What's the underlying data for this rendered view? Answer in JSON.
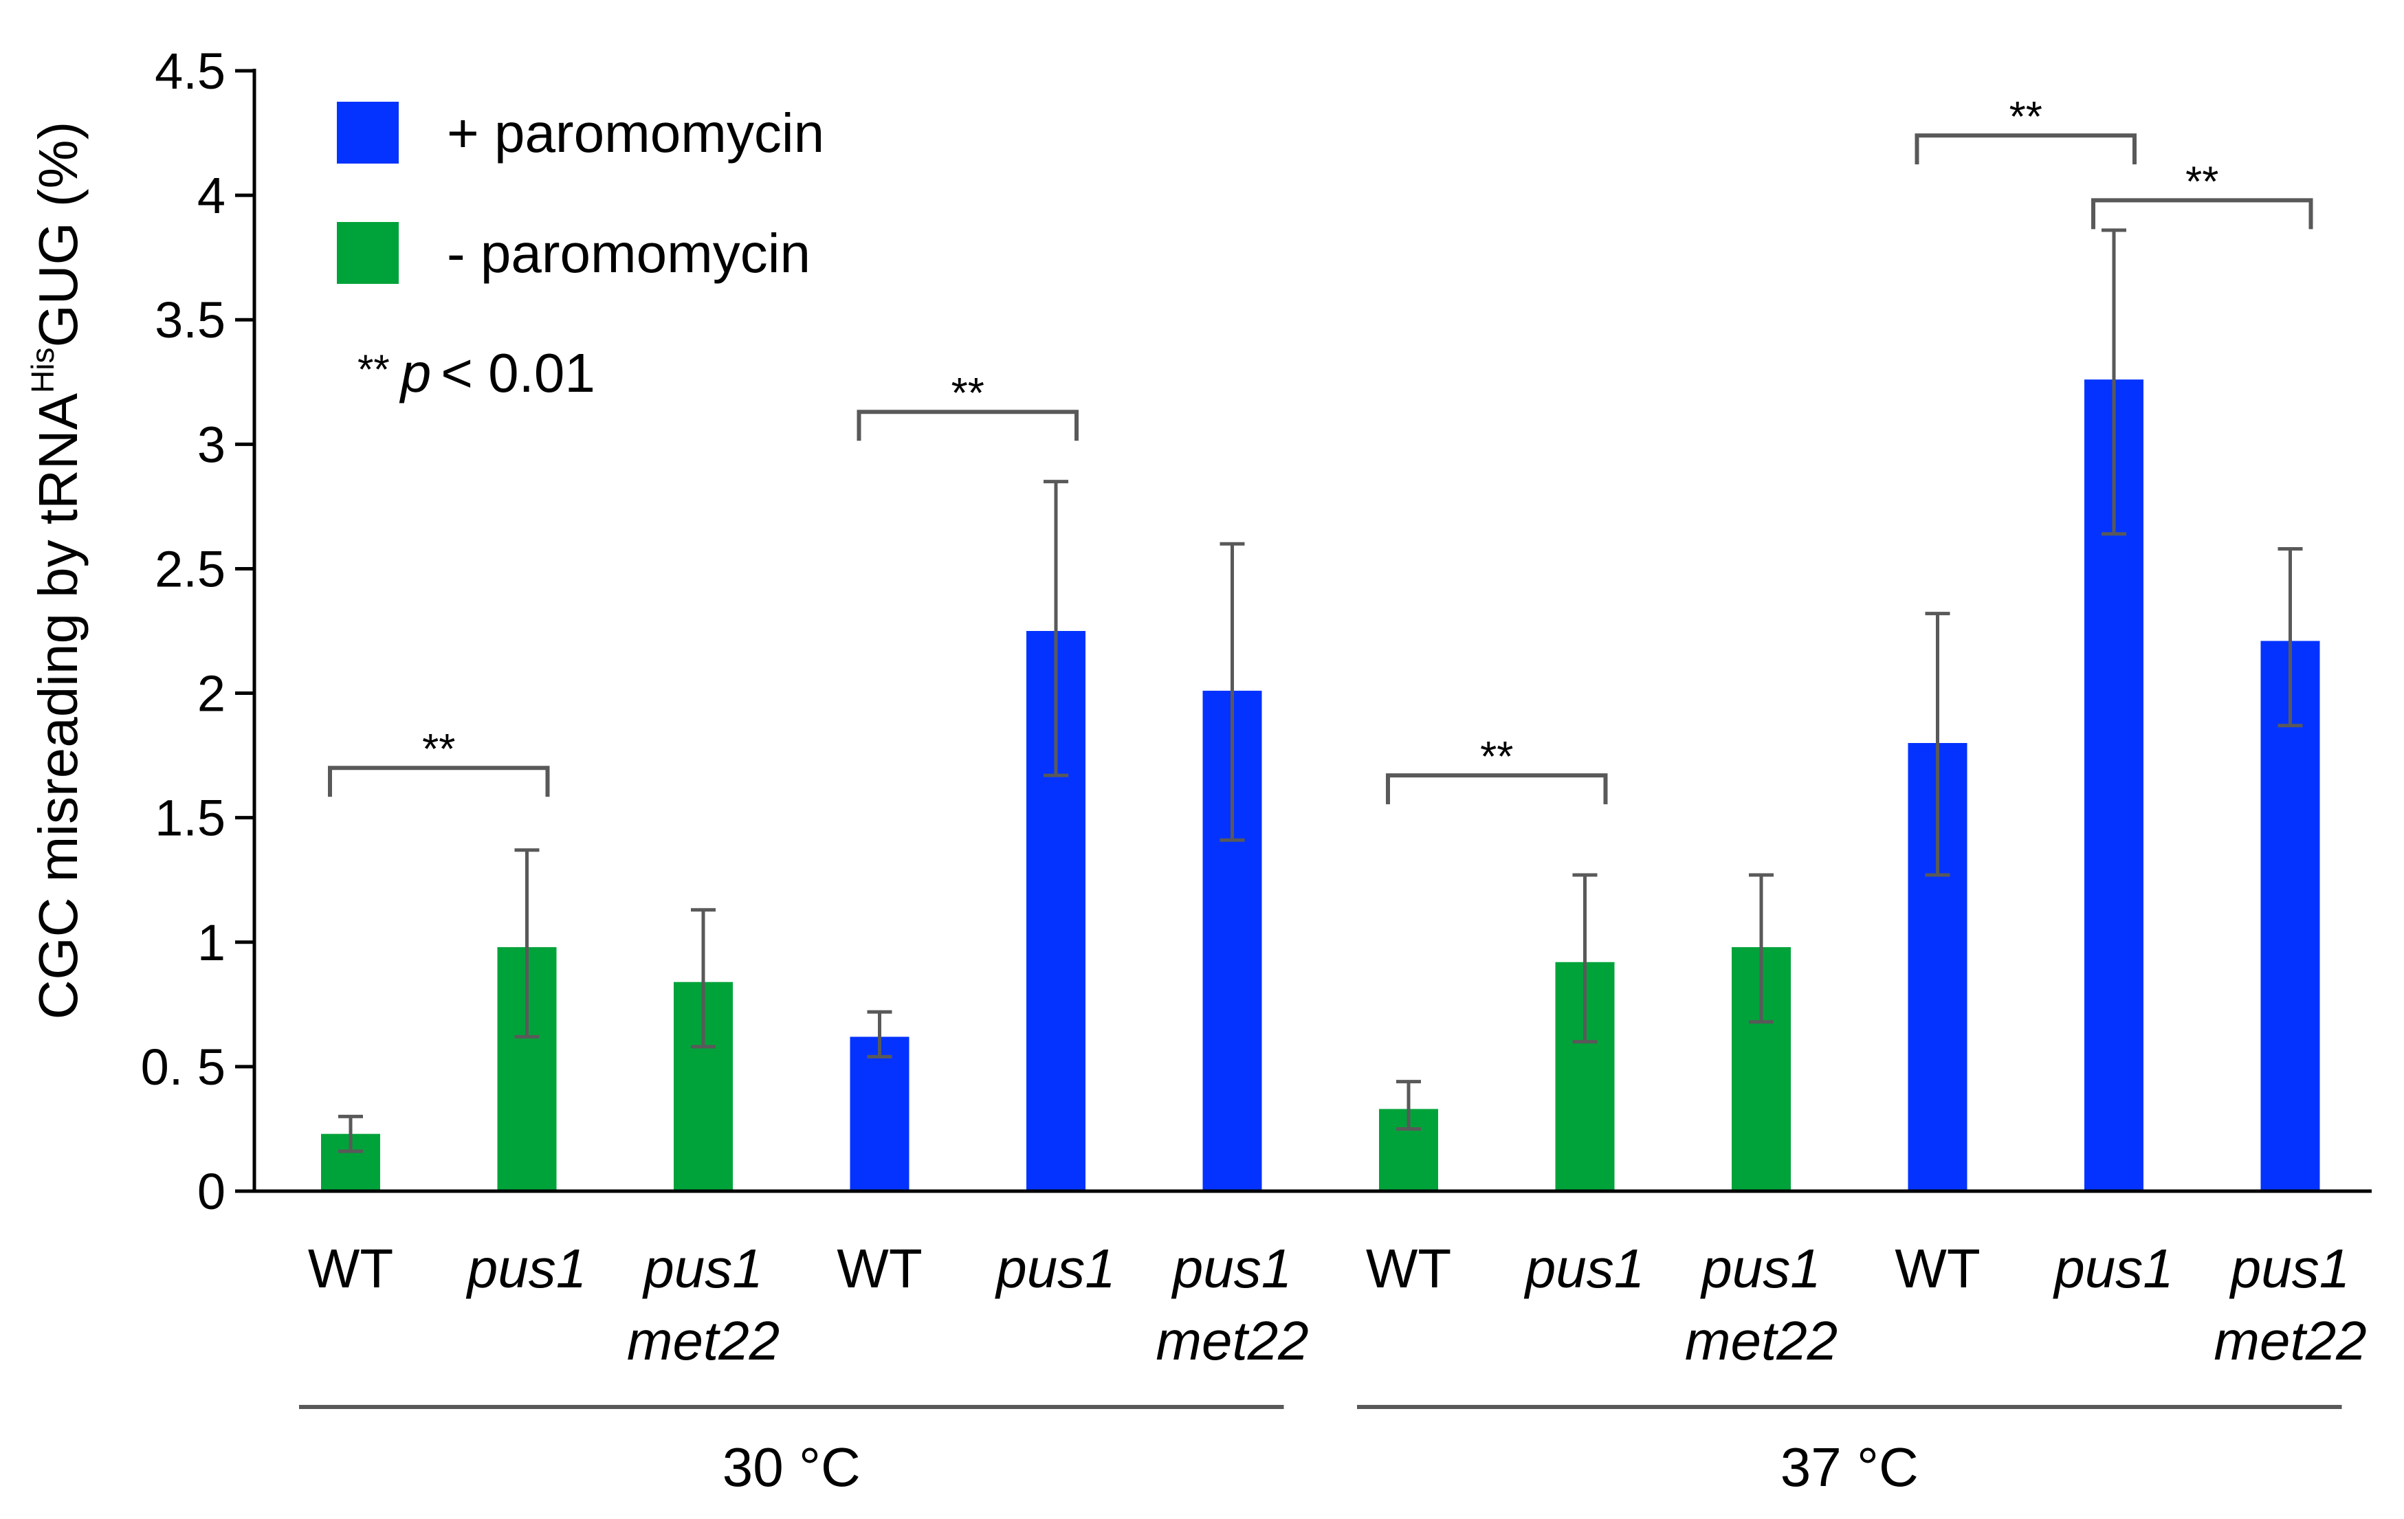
{
  "chart_data": {
    "type": "bar",
    "ylabel_prefix": "CGC misreading by tRNA",
    "ylabel_superscript": "His",
    "ylabel_suffix": "GUG (%)",
    "ylim": [
      0,
      4.5
    ],
    "yticks": [
      {
        "value": 0,
        "label": "0"
      },
      {
        "value": 0.5,
        "label": "0. 5"
      },
      {
        "value": 1,
        "label": "1"
      },
      {
        "value": 1.5,
        "label": "1.5"
      },
      {
        "value": 2,
        "label": "2"
      },
      {
        "value": 2.5,
        "label": "2.5"
      },
      {
        "value": 3,
        "label": "3"
      },
      {
        "value": 3.5,
        "label": "3.5"
      },
      {
        "value": 4,
        "label": "4"
      },
      {
        "value": 4.5,
        "label": "4.5"
      }
    ],
    "bars": [
      {
        "label": [
          "WT"
        ],
        "italic": false,
        "series": "minus",
        "value": 0.23,
        "err_low": 0.16,
        "err_high": 0.3
      },
      {
        "label": [
          "pus1"
        ],
        "italic": true,
        "series": "minus",
        "value": 0.98,
        "err_low": 0.62,
        "err_high": 1.37
      },
      {
        "label": [
          "pus1",
          "met22"
        ],
        "italic": true,
        "series": "minus",
        "value": 0.84,
        "err_low": 0.58,
        "err_high": 1.13
      },
      {
        "label": [
          "WT"
        ],
        "italic": false,
        "series": "plus",
        "value": 0.62,
        "err_low": 0.54,
        "err_high": 0.72
      },
      {
        "label": [
          "pus1"
        ],
        "italic": true,
        "series": "plus",
        "value": 2.25,
        "err_low": 1.67,
        "err_high": 2.85
      },
      {
        "label": [
          "pus1",
          "met22"
        ],
        "italic": true,
        "series": "plus",
        "value": 2.01,
        "err_low": 1.41,
        "err_high": 2.6
      },
      {
        "label": [
          "WT"
        ],
        "italic": false,
        "series": "minus",
        "value": 0.33,
        "err_low": 0.25,
        "err_high": 0.44
      },
      {
        "label": [
          "pus1"
        ],
        "italic": true,
        "series": "minus",
        "value": 0.92,
        "err_low": 0.6,
        "err_high": 1.27
      },
      {
        "label": [
          "pus1",
          "met22"
        ],
        "italic": true,
        "series": "minus",
        "value": 0.98,
        "err_low": 0.68,
        "err_high": 1.27
      },
      {
        "label": [
          "WT"
        ],
        "italic": false,
        "series": "plus",
        "value": 1.8,
        "err_low": 1.27,
        "err_high": 2.32
      },
      {
        "label": [
          "pus1"
        ],
        "italic": true,
        "series": "plus",
        "value": 3.26,
        "err_low": 2.64,
        "err_high": 3.86
      },
      {
        "label": [
          "pus1",
          "met22"
        ],
        "italic": true,
        "series": "plus",
        "value": 2.21,
        "err_low": 1.87,
        "err_high": 2.58
      }
    ],
    "series": [
      {
        "key": "plus",
        "name": "+ paromomycin",
        "color": "#0433ff"
      },
      {
        "key": "minus",
        "name": "- paromomycin",
        "color": "#00a33a"
      }
    ],
    "groups": [
      {
        "label": "30 °C",
        "from": 0,
        "to": 5
      },
      {
        "label": "37 °C",
        "from": 6,
        "to": 11
      }
    ],
    "significance": [
      {
        "from": 0,
        "to": 1,
        "level": 1.7,
        "label": "**"
      },
      {
        "from": 3,
        "to": 4,
        "level": 3.13,
        "label": "**"
      },
      {
        "from": 6,
        "to": 7,
        "level": 1.67,
        "label": "**"
      },
      {
        "from": 9,
        "to": 10,
        "level": 4.24,
        "label": "**"
      },
      {
        "from": 10,
        "to": 11,
        "level": 3.98,
        "label": "**"
      }
    ],
    "p_note_stars": "**",
    "p_note_symbol": "p",
    "p_note_text": "< 0.01",
    "legend_position": "top-left"
  }
}
